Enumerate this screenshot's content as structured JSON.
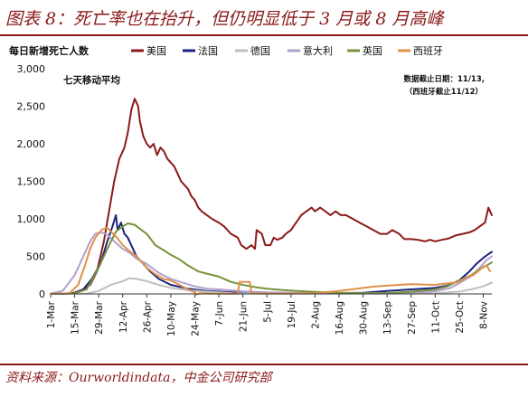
{
  "figure_title": "图表 8：死亡率也在抬升，但仍明显低于 3 月或 8 月高峰",
  "source": "资料来源：Ourworldindata，中金公司研究部",
  "chart_data": {
    "type": "line",
    "ylabel": "每日新增死亡人数",
    "annotation": "七天移动平均",
    "note_lines": [
      "数据截止日期：11/13,",
      "（西班牙截止11/12）"
    ],
    "ylim": [
      0,
      3000
    ],
    "y_ticks": [
      0,
      500,
      1000,
      1500,
      2000,
      2500,
      3000
    ],
    "y_tick_labels": [
      "0",
      "500",
      "1,000",
      "1,500",
      "2,000",
      "2,500",
      "3,000"
    ],
    "xlim": [
      "2020-03-01",
      "2020-11-13"
    ],
    "x_ticks": [
      "2020-03-01",
      "2020-03-15",
      "2020-03-29",
      "2020-04-12",
      "2020-04-26",
      "2020-05-10",
      "2020-05-24",
      "2020-06-07",
      "2020-06-21",
      "2020-07-05",
      "2020-07-19",
      "2020-08-02",
      "2020-08-16",
      "2020-08-30",
      "2020-09-13",
      "2020-09-27",
      "2020-10-11",
      "2020-10-25",
      "2020-11-08"
    ],
    "x_tick_labels": [
      "1-Mar",
      "15-Mar",
      "29-Mar",
      "12-Apr",
      "26-Apr",
      "10-May",
      "24-May",
      "7-Jun",
      "21-Jun",
      "5-Jul",
      "19-Jul",
      "2-Aug",
      "16-Aug",
      "30-Aug",
      "13-Sep",
      "27-Sep",
      "11-Oct",
      "25-Oct",
      "8-Nov"
    ],
    "grid": false,
    "legend_position": "top",
    "series": [
      {
        "name": "美国",
        "color": "#8b1a1a",
        "points": [
          [
            "2020-03-01",
            0
          ],
          [
            "2020-03-10",
            3
          ],
          [
            "2020-03-17",
            20
          ],
          [
            "2020-03-24",
            120
          ],
          [
            "2020-03-28",
            300
          ],
          [
            "2020-04-01",
            700
          ],
          [
            "2020-04-04",
            1100
          ],
          [
            "2020-04-07",
            1500
          ],
          [
            "2020-04-10",
            1800
          ],
          [
            "2020-04-13",
            1950
          ],
          [
            "2020-04-15",
            2150
          ],
          [
            "2020-04-17",
            2450
          ],
          [
            "2020-04-19",
            2600
          ],
          [
            "2020-04-21",
            2500
          ],
          [
            "2020-04-22",
            2300
          ],
          [
            "2020-04-24",
            2100
          ],
          [
            "2020-04-26",
            2000
          ],
          [
            "2020-04-28",
            1950
          ],
          [
            "2020-04-30",
            2000
          ],
          [
            "2020-05-02",
            1850
          ],
          [
            "2020-05-04",
            1950
          ],
          [
            "2020-05-06",
            1900
          ],
          [
            "2020-05-08",
            1800
          ],
          [
            "2020-05-10",
            1750
          ],
          [
            "2020-05-12",
            1700
          ],
          [
            "2020-05-14",
            1600
          ],
          [
            "2020-05-16",
            1500
          ],
          [
            "2020-05-18",
            1450
          ],
          [
            "2020-05-20",
            1400
          ],
          [
            "2020-05-22",
            1300
          ],
          [
            "2020-05-24",
            1250
          ],
          [
            "2020-05-26",
            1150
          ],
          [
            "2020-05-28",
            1100
          ],
          [
            "2020-05-31",
            1050
          ],
          [
            "2020-06-03",
            1000
          ],
          [
            "2020-06-07",
            950
          ],
          [
            "2020-06-10",
            900
          ],
          [
            "2020-06-14",
            800
          ],
          [
            "2020-06-18",
            750
          ],
          [
            "2020-06-20",
            650
          ],
          [
            "2020-06-23",
            600
          ],
          [
            "2020-06-26",
            650
          ],
          [
            "2020-06-28",
            600
          ],
          [
            "2020-06-29",
            850
          ],
          [
            "2020-07-02",
            800
          ],
          [
            "2020-07-04",
            650
          ],
          [
            "2020-07-07",
            650
          ],
          [
            "2020-07-09",
            750
          ],
          [
            "2020-07-11",
            720
          ],
          [
            "2020-07-14",
            750
          ],
          [
            "2020-07-16",
            800
          ],
          [
            "2020-07-19",
            850
          ],
          [
            "2020-07-22",
            950
          ],
          [
            "2020-07-25",
            1050
          ],
          [
            "2020-07-28",
            1100
          ],
          [
            "2020-07-31",
            1150
          ],
          [
            "2020-08-02",
            1100
          ],
          [
            "2020-08-05",
            1150
          ],
          [
            "2020-08-08",
            1100
          ],
          [
            "2020-08-11",
            1050
          ],
          [
            "2020-08-14",
            1100
          ],
          [
            "2020-08-17",
            1050
          ],
          [
            "2020-08-20",
            1050
          ],
          [
            "2020-08-24",
            1000
          ],
          [
            "2020-08-28",
            950
          ],
          [
            "2020-09-01",
            900
          ],
          [
            "2020-09-05",
            850
          ],
          [
            "2020-09-09",
            800
          ],
          [
            "2020-09-13",
            800
          ],
          [
            "2020-09-16",
            850
          ],
          [
            "2020-09-20",
            800
          ],
          [
            "2020-09-23",
            730
          ],
          [
            "2020-09-27",
            730
          ],
          [
            "2020-10-01",
            720
          ],
          [
            "2020-10-05",
            700
          ],
          [
            "2020-10-08",
            720
          ],
          [
            "2020-10-11",
            700
          ],
          [
            "2020-10-15",
            720
          ],
          [
            "2020-10-19",
            740
          ],
          [
            "2020-10-23",
            780
          ],
          [
            "2020-10-27",
            800
          ],
          [
            "2020-10-31",
            820
          ],
          [
            "2020-11-03",
            850
          ],
          [
            "2020-11-06",
            900
          ],
          [
            "2020-11-09",
            950
          ],
          [
            "2020-11-11",
            1150
          ],
          [
            "2020-11-13",
            1050
          ]
        ]
      },
      {
        "name": "法国",
        "color": "#1a237e",
        "points": [
          [
            "2020-03-01",
            0
          ],
          [
            "2020-03-14",
            10
          ],
          [
            "2020-03-20",
            60
          ],
          [
            "2020-03-25",
            200
          ],
          [
            "2020-03-30",
            400
          ],
          [
            "2020-04-03",
            700
          ],
          [
            "2020-04-06",
            900
          ],
          [
            "2020-04-08",
            1050
          ],
          [
            "2020-04-09",
            850
          ],
          [
            "2020-04-11",
            950
          ],
          [
            "2020-04-13",
            800
          ],
          [
            "2020-04-15",
            750
          ],
          [
            "2020-04-18",
            600
          ],
          [
            "2020-04-20",
            500
          ],
          [
            "2020-04-24",
            400
          ],
          [
            "2020-04-28",
            300
          ],
          [
            "2020-05-03",
            200
          ],
          [
            "2020-05-10",
            120
          ],
          [
            "2020-05-20",
            70
          ],
          [
            "2020-05-31",
            40
          ],
          [
            "2020-06-15",
            20
          ],
          [
            "2020-07-05",
            12
          ],
          [
            "2020-08-01",
            10
          ],
          [
            "2020-08-30",
            15
          ],
          [
            "2020-09-13",
            40
          ],
          [
            "2020-09-27",
            60
          ],
          [
            "2020-10-11",
            80
          ],
          [
            "2020-10-18",
            110
          ],
          [
            "2020-10-25",
            180
          ],
          [
            "2020-10-31",
            300
          ],
          [
            "2020-11-04",
            400
          ],
          [
            "2020-11-08",
            480
          ],
          [
            "2020-11-11",
            530
          ],
          [
            "2020-11-13",
            560
          ]
        ]
      },
      {
        "name": "德国",
        "color": "#bfbfbf",
        "points": [
          [
            "2020-03-01",
            0
          ],
          [
            "2020-03-22",
            5
          ],
          [
            "2020-03-29",
            40
          ],
          [
            "2020-04-05",
            120
          ],
          [
            "2020-04-12",
            170
          ],
          [
            "2020-04-16",
            210
          ],
          [
            "2020-04-20",
            200
          ],
          [
            "2020-04-26",
            170
          ],
          [
            "2020-05-03",
            120
          ],
          [
            "2020-05-10",
            80
          ],
          [
            "2020-05-20",
            50
          ],
          [
            "2020-05-31",
            30
          ],
          [
            "2020-06-15",
            10
          ],
          [
            "2020-07-05",
            5
          ],
          [
            "2020-08-15",
            5
          ],
          [
            "2020-09-15",
            6
          ],
          [
            "2020-10-11",
            10
          ],
          [
            "2020-10-25",
            30
          ],
          [
            "2020-11-01",
            60
          ],
          [
            "2020-11-08",
            100
          ],
          [
            "2020-11-13",
            150
          ]
        ]
      },
      {
        "name": "意大利",
        "color": "#b0a0cc",
        "points": [
          [
            "2020-03-01",
            5
          ],
          [
            "2020-03-08",
            40
          ],
          [
            "2020-03-15",
            250
          ],
          [
            "2020-03-20",
            500
          ],
          [
            "2020-03-24",
            700
          ],
          [
            "2020-03-27",
            800
          ],
          [
            "2020-03-30",
            820
          ],
          [
            "2020-04-03",
            790
          ],
          [
            "2020-04-07",
            700
          ],
          [
            "2020-04-12",
            600
          ],
          [
            "2020-04-16",
            550
          ],
          [
            "2020-04-20",
            470
          ],
          [
            "2020-04-26",
            400
          ],
          [
            "2020-05-03",
            280
          ],
          [
            "2020-05-10",
            200
          ],
          [
            "2020-05-17",
            150
          ],
          [
            "2020-05-24",
            100
          ],
          [
            "2020-05-31",
            70
          ],
          [
            "2020-06-07",
            60
          ],
          [
            "2020-06-21",
            35
          ],
          [
            "2020-07-05",
            20
          ],
          [
            "2020-08-02",
            10
          ],
          [
            "2020-08-30",
            8
          ],
          [
            "2020-09-13",
            12
          ],
          [
            "2020-09-27",
            20
          ],
          [
            "2020-10-11",
            35
          ],
          [
            "2020-10-20",
            80
          ],
          [
            "2020-10-27",
            170
          ],
          [
            "2020-11-02",
            250
          ],
          [
            "2020-11-06",
            350
          ],
          [
            "2020-11-10",
            450
          ],
          [
            "2020-11-13",
            500
          ]
        ]
      },
      {
        "name": "英国",
        "color": "#77933c",
        "points": [
          [
            "2020-03-01",
            0
          ],
          [
            "2020-03-15",
            10
          ],
          [
            "2020-03-22",
            60
          ],
          [
            "2020-03-29",
            350
          ],
          [
            "2020-04-03",
            600
          ],
          [
            "2020-04-08",
            830
          ],
          [
            "2020-04-12",
            900
          ],
          [
            "2020-04-15",
            940
          ],
          [
            "2020-04-19",
            920
          ],
          [
            "2020-04-23",
            850
          ],
          [
            "2020-04-26",
            800
          ],
          [
            "2020-05-01",
            650
          ],
          [
            "2020-05-06",
            580
          ],
          [
            "2020-05-10",
            520
          ],
          [
            "2020-05-15",
            460
          ],
          [
            "2020-05-20",
            380
          ],
          [
            "2020-05-26",
            300
          ],
          [
            "2020-05-31",
            270
          ],
          [
            "2020-06-07",
            230
          ],
          [
            "2020-06-14",
            160
          ],
          [
            "2020-06-21",
            120
          ],
          [
            "2020-06-28",
            90
          ],
          [
            "2020-07-05",
            70
          ],
          [
            "2020-07-15",
            50
          ],
          [
            "2020-07-30",
            30
          ],
          [
            "2020-08-15",
            15
          ],
          [
            "2020-08-30",
            10
          ],
          [
            "2020-09-13",
            10
          ],
          [
            "2020-09-27",
            30
          ],
          [
            "2020-10-11",
            60
          ],
          [
            "2020-10-18",
            100
          ],
          [
            "2020-10-25",
            180
          ],
          [
            "2020-11-01",
            250
          ],
          [
            "2020-11-06",
            330
          ],
          [
            "2020-11-10",
            380
          ],
          [
            "2020-11-13",
            420
          ]
        ]
      },
      {
        "name": "西班牙",
        "color": "#e0904a",
        "points": [
          [
            "2020-03-01",
            0
          ],
          [
            "2020-03-12",
            10
          ],
          [
            "2020-03-17",
            120
          ],
          [
            "2020-03-21",
            380
          ],
          [
            "2020-03-24",
            600
          ],
          [
            "2020-03-27",
            750
          ],
          [
            "2020-03-31",
            860
          ],
          [
            "2020-04-03",
            880
          ],
          [
            "2020-04-06",
            810
          ],
          [
            "2020-04-09",
            740
          ],
          [
            "2020-04-12",
            650
          ],
          [
            "2020-04-16",
            570
          ],
          [
            "2020-04-19",
            520
          ],
          [
            "2020-04-23",
            420
          ],
          [
            "2020-04-26",
            350
          ],
          [
            "2020-05-01",
            260
          ],
          [
            "2020-05-06",
            200
          ],
          [
            "2020-05-10",
            180
          ],
          [
            "2020-05-15",
            120
          ],
          [
            "2020-05-20",
            60
          ],
          [
            "2020-05-24",
            20
          ],
          [
            "2020-05-25",
            -10
          ],
          [
            "2020-05-27",
            10
          ],
          [
            "2020-06-01",
            5
          ],
          [
            "2020-06-10",
            3
          ],
          [
            "2020-06-18",
            3
          ],
          [
            "2020-06-19",
            160
          ],
          [
            "2020-06-25",
            160
          ],
          [
            "2020-06-26",
            5
          ],
          [
            "2020-07-05",
            5
          ],
          [
            "2020-07-19",
            5
          ],
          [
            "2020-08-02",
            10
          ],
          [
            "2020-08-16",
            40
          ],
          [
            "2020-08-30",
            80
          ],
          [
            "2020-09-06",
            100
          ],
          [
            "2020-09-13",
            110
          ],
          [
            "2020-09-20",
            120
          ],
          [
            "2020-09-27",
            130
          ],
          [
            "2020-10-04",
            125
          ],
          [
            "2020-10-11",
            120
          ],
          [
            "2020-10-18",
            140
          ],
          [
            "2020-10-25",
            160
          ],
          [
            "2020-10-29",
            220
          ],
          [
            "2020-11-02",
            250
          ],
          [
            "2020-11-05",
            300
          ],
          [
            "2020-11-08",
            360
          ],
          [
            "2020-11-10",
            380
          ],
          [
            "2020-11-12",
            300
          ]
        ]
      }
    ]
  }
}
